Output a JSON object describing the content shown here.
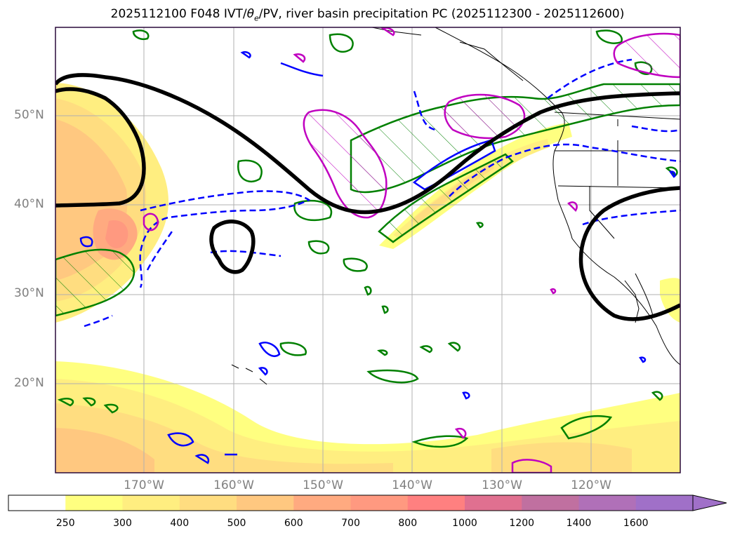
{
  "title": "2025112100 F048 IVT/θe/PV, river basin precipitation PC (2025112300 - 2025112600)",
  "title_parts": {
    "prefix": "2025112100 F048 IVT/",
    "theta": "θ",
    "sub": "e",
    "suffix": "/PV, river basin precipitation PC (2025112300 - 2025112600)"
  },
  "lat_labels": [
    "50°N",
    "40°N",
    "30°N",
    "20°N"
  ],
  "lon_labels": [
    "170°W",
    "160°W",
    "150°W",
    "140°W",
    "130°W",
    "120°W"
  ],
  "colorbar": {
    "ticks": [
      "250",
      "300",
      "400",
      "500",
      "600",
      "700",
      "800",
      "1000",
      "1200",
      "1400",
      "1600"
    ],
    "colors": [
      "#ffffff",
      "#ffff80",
      "#ffee80",
      "#ffdd80",
      "#ffc880",
      "#ffaa80",
      "#ff9980",
      "#ff8080",
      "#e07090",
      "#c070a0",
      "#b070b8",
      "#a070c8"
    ]
  },
  "colors": {
    "frame": "#2a0a3a",
    "positive_contour": "#008000",
    "negative_contour": "#0000ff",
    "pv_contour": "#c000c0",
    "heavy_contour": "#000000",
    "coast": "#000000",
    "grid": "#b0b0b0"
  }
}
